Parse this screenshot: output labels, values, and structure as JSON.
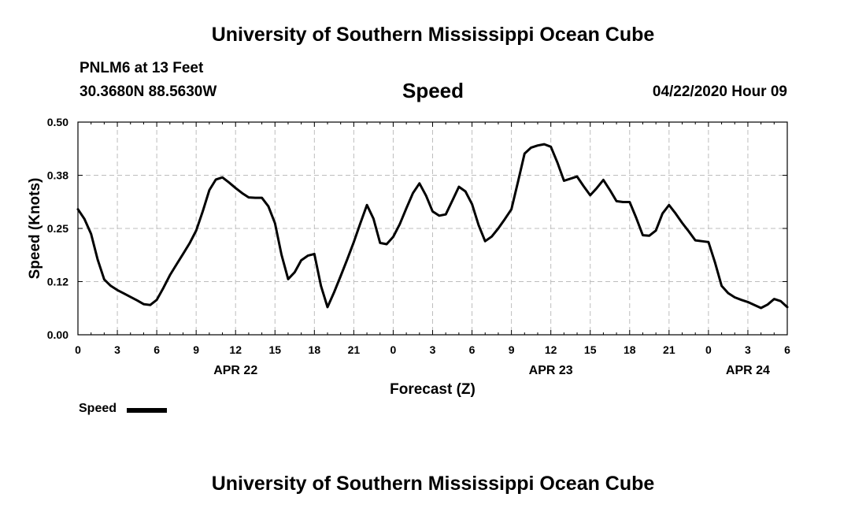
{
  "header": {
    "title": "University of Southern Mississippi Ocean Cube",
    "station": "PNLM6 at 13 Feet",
    "coordinates": "30.3680N 88.5630W",
    "datetime": "04/22/2020 Hour 09"
  },
  "footer": {
    "title": "University of Southern Mississippi Ocean Cube"
  },
  "legend": {
    "label": "Speed",
    "color": "#000000"
  },
  "chart_data": {
    "type": "line",
    "title": "Speed",
    "xlabel": "Forecast (Z)",
    "ylabel": "Speed (Knots)",
    "x_unit": "hours from APR 22 00Z",
    "xlim": [
      0,
      54
    ],
    "ylim": [
      0,
      0.5
    ],
    "grid": true,
    "legend_position": "bottom-left",
    "y_ticks": [
      {
        "value": 0,
        "label": "0.00"
      },
      {
        "value": 0.125,
        "label": "0.12"
      },
      {
        "value": 0.25,
        "label": "0.25"
      },
      {
        "value": 0.375,
        "label": "0.38"
      },
      {
        "value": 0.5,
        "label": "0.50"
      }
    ],
    "x_ticks": [
      {
        "value": 0,
        "label": "0"
      },
      {
        "value": 3,
        "label": "3"
      },
      {
        "value": 6,
        "label": "6"
      },
      {
        "value": 9,
        "label": "9"
      },
      {
        "value": 12,
        "label": "12"
      },
      {
        "value": 15,
        "label": "15"
      },
      {
        "value": 18,
        "label": "18"
      },
      {
        "value": 21,
        "label": "21"
      },
      {
        "value": 24,
        "label": "0"
      },
      {
        "value": 27,
        "label": "3"
      },
      {
        "value": 30,
        "label": "6"
      },
      {
        "value": 33,
        "label": "9"
      },
      {
        "value": 36,
        "label": "12"
      },
      {
        "value": 39,
        "label": "15"
      },
      {
        "value": 42,
        "label": "18"
      },
      {
        "value": 45,
        "label": "21"
      },
      {
        "value": 48,
        "label": "0"
      },
      {
        "value": 51,
        "label": "3"
      },
      {
        "value": 54,
        "label": "6"
      }
    ],
    "date_labels": [
      {
        "value": 12,
        "label": "APR 22"
      },
      {
        "value": 36,
        "label": "APR 23"
      },
      {
        "value": 51,
        "label": "APR 24"
      }
    ],
    "series": [
      {
        "name": "Speed",
        "color": "#000000",
        "x": [
          0,
          0.5,
          1,
          1.5,
          2,
          2.5,
          3,
          3.5,
          4,
          4.5,
          5,
          5.5,
          6,
          6.5,
          7,
          7.5,
          8,
          8.5,
          9,
          9.5,
          10,
          10.5,
          11,
          11.5,
          12,
          12.5,
          13,
          13.5,
          14,
          14.5,
          15,
          15.5,
          16,
          16.5,
          17,
          17.5,
          18,
          18.5,
          19,
          19.5,
          20,
          20.5,
          21,
          21.5,
          22,
          22.5,
          23,
          23.5,
          24,
          24.5,
          25,
          25.5,
          26,
          26.5,
          27,
          27.5,
          28,
          28.5,
          29,
          29.5,
          30,
          30.5,
          31,
          31.5,
          32,
          32.5,
          33,
          33.5,
          34,
          34.5,
          35,
          35.5,
          36,
          36.5,
          37,
          37.5,
          38,
          38.5,
          39,
          39.5,
          40,
          40.5,
          41,
          41.5,
          42,
          42.5,
          43,
          43.5,
          44,
          44.5,
          45,
          45.5,
          46,
          46.5,
          47,
          47.5,
          48,
          48.5,
          49,
          49.5,
          50,
          50.5,
          51,
          51.5,
          52,
          52.5,
          53,
          53.5,
          54
        ],
        "values": [
          0.295,
          0.272,
          0.237,
          0.177,
          0.13,
          0.115,
          0.105,
          0.097,
          0.089,
          0.081,
          0.072,
          0.07,
          0.082,
          0.11,
          0.14,
          0.165,
          0.19,
          0.215,
          0.245,
          0.29,
          0.34,
          0.365,
          0.37,
          0.358,
          0.345,
          0.333,
          0.323,
          0.322,
          0.322,
          0.302,
          0.262,
          0.188,
          0.131,
          0.147,
          0.175,
          0.186,
          0.19,
          0.115,
          0.065,
          0.1,
          0.138,
          0.177,
          0.218,
          0.262,
          0.305,
          0.273,
          0.216,
          0.213,
          0.23,
          0.26,
          0.297,
          0.333,
          0.356,
          0.327,
          0.29,
          0.28,
          0.283,
          0.315,
          0.348,
          0.337,
          0.307,
          0.258,
          0.22,
          0.231,
          0.25,
          0.272,
          0.295,
          0.36,
          0.426,
          0.44,
          0.445,
          0.448,
          0.442,
          0.405,
          0.362,
          0.367,
          0.372,
          0.349,
          0.328,
          0.345,
          0.364,
          0.34,
          0.314,
          0.312,
          0.312,
          0.275,
          0.234,
          0.233,
          0.245,
          0.285,
          0.305,
          0.285,
          0.263,
          0.243,
          0.222,
          0.22,
          0.218,
          0.17,
          0.115,
          0.098,
          0.088,
          0.082,
          0.077,
          0.07,
          0.063,
          0.071,
          0.084,
          0.079,
          0.065
        ]
      }
    ]
  }
}
